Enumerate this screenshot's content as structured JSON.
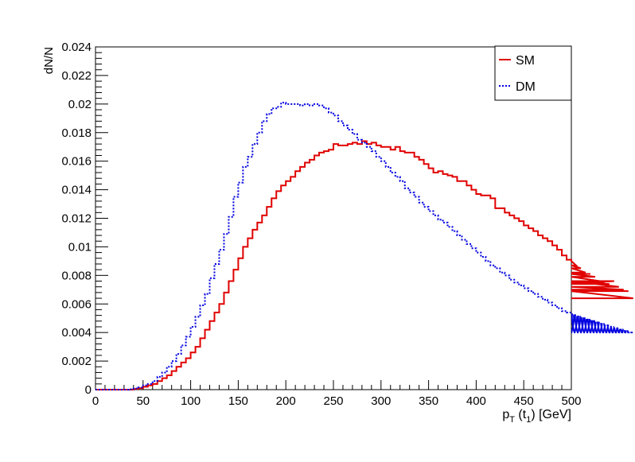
{
  "chart_data": {
    "type": "line",
    "title": "",
    "xlabel_parts": {
      "main1": "p",
      "sub1": "T",
      "main2": " (t",
      "sub2": "1",
      "main3": ") [GeV]"
    },
    "ylabel": "dN/N",
    "xlim": [
      0,
      500
    ],
    "ylim": [
      0,
      0.024
    ],
    "x_ticks": [
      0,
      50,
      100,
      150,
      200,
      250,
      300,
      350,
      400,
      450,
      500
    ],
    "x_tick_labels": [
      "0",
      "50",
      "100",
      "150",
      "200",
      "250",
      "300",
      "350",
      "400",
      "450",
      "500"
    ],
    "y_ticks": [
      0,
      0.002,
      0.004,
      0.006,
      0.008,
      0.01,
      0.012,
      0.014,
      0.016,
      0.018,
      0.02,
      0.022,
      0.024
    ],
    "y_tick_labels": [
      "0",
      "0.002",
      "0.004",
      "0.006",
      "0.008",
      "0.01",
      "0.012",
      "0.014",
      "0.016",
      "0.018",
      "0.02",
      "0.022",
      "0.024"
    ],
    "grid": false,
    "legend_position": "top-right",
    "bin_width": 5,
    "bin_edges_start": 0,
    "series": [
      {
        "name": "SM",
        "color": "#e00000",
        "style": "solid",
        "values": [
          0,
          0,
          0,
          0,
          0,
          0,
          0,
          0,
          5e-05,
          0.0001,
          0.0002,
          0.0003,
          0.0004,
          0.0006,
          0.0008,
          0.001,
          0.0013,
          0.0016,
          0.0019,
          0.0022,
          0.0026,
          0.003,
          0.0036,
          0.0042,
          0.0048,
          0.0054,
          0.006,
          0.0068,
          0.0076,
          0.0084,
          0.0092,
          0.01,
          0.0106,
          0.0112,
          0.0117,
          0.0122,
          0.0128,
          0.0134,
          0.0139,
          0.0143,
          0.0146,
          0.0149,
          0.0153,
          0.0156,
          0.0159,
          0.0161,
          0.0164,
          0.0166,
          0.0167,
          0.0168,
          0.0172,
          0.0171,
          0.0171,
          0.0172,
          0.0173,
          0.0172,
          0.0174,
          0.0172,
          0.0173,
          0.0171,
          0.017,
          0.017,
          0.0168,
          0.017,
          0.0167,
          0.0166,
          0.0166,
          0.0163,
          0.0161,
          0.0158,
          0.0155,
          0.0152,
          0.0153,
          0.0151,
          0.015,
          0.0149,
          0.0146,
          0.0146,
          0.0143,
          0.014,
          0.0137,
          0.0136,
          0.0136,
          0.0134,
          0.0127,
          0.0127,
          0.0124,
          0.0122,
          0.012,
          0.0118,
          0.0115,
          0.0113,
          0.0111,
          0.0108,
          0.0106,
          0.0104,
          0.0101,
          0.0098,
          0.0094,
          0.0091,
          0.009,
          0.0087,
          0.0085,
          0.0082,
          0.0081,
          0.0079,
          0.0076,
          0.0075,
          0.0074,
          0.0076,
          0.0072,
          0.007,
          0.0069,
          0.0064
        ]
      },
      {
        "name": "DM",
        "color": "#0000e0",
        "style": "dotted",
        "values": [
          0,
          0,
          0,
          0,
          0,
          0,
          0,
          3e-05,
          8e-05,
          0.00015,
          0.0003,
          0.0004,
          0.0006,
          0.0009,
          0.0012,
          0.0016,
          0.002,
          0.0025,
          0.0031,
          0.0037,
          0.0044,
          0.0051,
          0.0059,
          0.0067,
          0.0078,
          0.0088,
          0.0098,
          0.0109,
          0.0121,
          0.0135,
          0.0145,
          0.0156,
          0.0163,
          0.0172,
          0.018,
          0.0188,
          0.0193,
          0.0197,
          0.0198,
          0.0201,
          0.02,
          0.02,
          0.02,
          0.0199,
          0.02,
          0.0199,
          0.02,
          0.0199,
          0.0197,
          0.0194,
          0.0192,
          0.0188,
          0.0185,
          0.0182,
          0.0179,
          0.0175,
          0.0173,
          0.017,
          0.0167,
          0.0163,
          0.016,
          0.0156,
          0.0152,
          0.0149,
          0.0146,
          0.0141,
          0.0138,
          0.0135,
          0.0131,
          0.0128,
          0.0125,
          0.0122,
          0.0119,
          0.0117,
          0.0114,
          0.0111,
          0.0108,
          0.0105,
          0.0102,
          0.0099,
          0.0096,
          0.0093,
          0.009,
          0.0087,
          0.0085,
          0.0082,
          0.008,
          0.0077,
          0.0075,
          0.0073,
          0.0071,
          0.0069,
          0.0067,
          0.0065,
          0.0063,
          0.0061,
          0.0059,
          0.0057,
          0.0055,
          0.0054,
          0.0053,
          0.0052,
          0.0051,
          0.005,
          0.0049,
          0.0048,
          0.0047,
          0.0046,
          0.0045,
          0.0044,
          0.0043,
          0.0042,
          0.0041,
          0.004
        ]
      }
    ]
  }
}
